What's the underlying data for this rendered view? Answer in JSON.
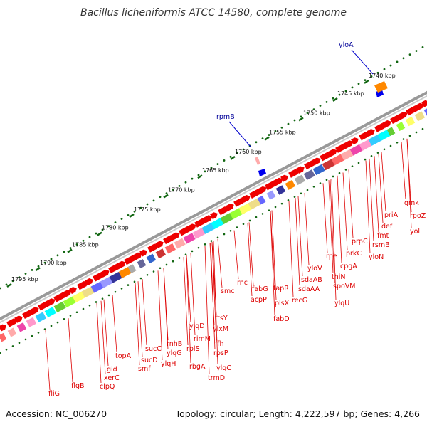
{
  "title": "Bacillus licheniformis ATCC 14580, complete genome",
  "footer": {
    "accession": "Accession: NC_006270",
    "summary": "Topology: circular; Length: 4,222,597 bp; Genes: 4,266"
  },
  "colors": {
    "gene": "#ee0000",
    "label": "#dd0000",
    "featured": "#000099",
    "tick": "#116611",
    "backbone": "#888888"
  },
  "scale_labels": [
    "1795 kbp",
    "1790 kbp",
    "1785 kbp",
    "1780 kbp",
    "1775 kbp",
    "1770 kbp",
    "1765 kbp",
    "1760 kbp",
    "1755 kbp",
    "1750 kbp",
    "1745 kbp",
    "1740 kbp"
  ],
  "featured_genes": [
    "yloA",
    "rpmB"
  ],
  "gene_labels": [
    "fliG",
    "flgB",
    "clpQ",
    "xerC",
    "gid",
    "topA",
    "smf",
    "sucD",
    "sucC",
    "ylqH",
    "ylqG",
    "rnhB",
    "rplS",
    "rbgA",
    "rimM",
    "ylqD",
    "ffh",
    "rpsP",
    "ylqC",
    "trmD",
    "ftsY",
    "ylxM",
    "smc",
    "rnc",
    "fabG",
    "acpP",
    "fabD",
    "plsX",
    "fapR",
    "recG",
    "sdaAA",
    "sdaAB",
    "ylqU",
    "yloV",
    "spoVM",
    "thiN",
    "cpgA",
    "rpe",
    "prkC",
    "yloN",
    "prpC",
    "rsmB",
    "fmt",
    "def",
    "priA",
    "gmk",
    "rpoZ",
    "yolI"
  ]
}
